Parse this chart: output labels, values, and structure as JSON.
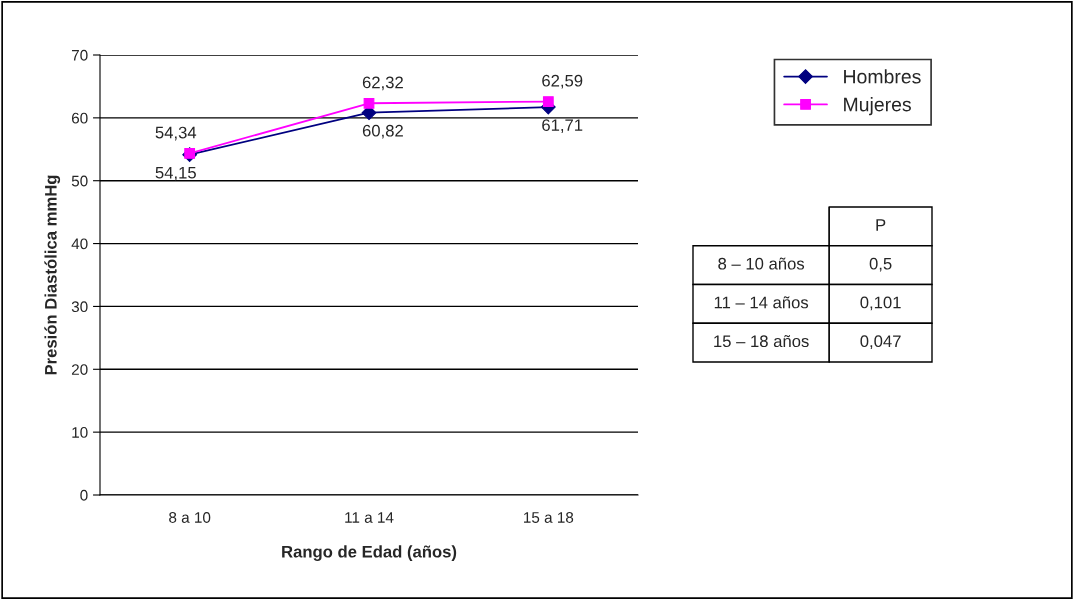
{
  "chart_data": {
    "type": "line",
    "xlabel": "Rango de Edad (años)",
    "ylabel": "Presión Diastólica mmHg",
    "categories": [
      "8 a 10",
      "11 a 14",
      "15 a 18"
    ],
    "series": [
      {
        "name": "Hombres",
        "color": "#000080",
        "marker": "diamond",
        "values": [
          54.15,
          60.82,
          61.71
        ],
        "value_labels": [
          "54,15",
          "60,82",
          "61,71"
        ]
      },
      {
        "name": "Mujeres",
        "color": "#ff00ff",
        "marker": "square",
        "values": [
          54.34,
          62.32,
          62.59
        ],
        "value_labels": [
          "54,34",
          "62,32",
          "62,59"
        ]
      }
    ],
    "ylim": [
      0,
      70
    ],
    "yticks": [
      0,
      10,
      20,
      30,
      40,
      50,
      60,
      70
    ],
    "grid": "y",
    "legend": "top right",
    "line_style": "solid",
    "annotations": [
      "P",
      "8 – 10 años",
      "0,5",
      "11 – 14 años",
      "0,101",
      "15 – 18 años",
      "0,047"
    ]
  }
}
